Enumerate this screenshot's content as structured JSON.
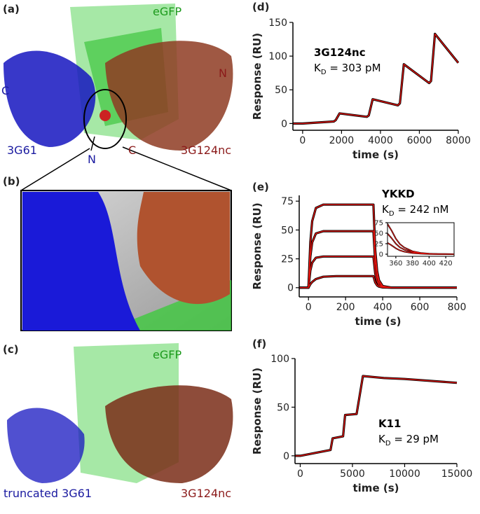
{
  "structure_panels": [
    {
      "label": "(a)",
      "texts": [
        "eGFP",
        "C",
        "N",
        "3G61",
        "N",
        "C",
        "3G124nc"
      ]
    },
    {
      "label": "(b)"
    },
    {
      "label": "(c)",
      "texts": [
        "eGFP",
        "truncated 3G61",
        "3G124nc"
      ]
    }
  ],
  "chart_data": [
    {
      "type": "line",
      "panel_label": "(d)",
      "xlabel": "time (s)",
      "ylabel": "Response (RU)",
      "annotation": "3G124nc",
      "kd": {
        "symbol": "K",
        "subscript": "D",
        "text": " = 303 pM"
      },
      "xlim": [
        -500,
        8000
      ],
      "xticks": [
        0,
        2000,
        4000,
        6000,
        8000
      ],
      "ylim": [
        -10,
        150
      ],
      "yticks": [
        0,
        50,
        100,
        150
      ],
      "x": [
        -500,
        0,
        1600,
        1700,
        1900,
        3300,
        3400,
        3600,
        4900,
        5000,
        5200,
        6500,
        6600,
        6800,
        8000
      ],
      "series": [
        {
          "color": "#000000",
          "values": [
            0,
            0,
            3,
            5,
            15,
            10,
            12,
            36,
            27,
            30,
            88,
            60,
            63,
            133,
            90
          ]
        },
        {
          "color": "#e8140f",
          "values": [
            0,
            0,
            3,
            5,
            15,
            10,
            12,
            36,
            27,
            30,
            88,
            60,
            63,
            133,
            90
          ]
        }
      ]
    },
    {
      "type": "line",
      "panel_label": "(e)",
      "xlabel": "time (s)",
      "ylabel": "Response (RU)",
      "annotation": "YKKD",
      "kd": {
        "symbol": "K",
        "subscript": "D",
        "text": " = 242 nM"
      },
      "xlim": [
        -50,
        800
      ],
      "xticks": [
        0,
        200,
        400,
        600,
        800
      ],
      "ylim": [
        -8,
        80
      ],
      "yticks": [
        0,
        25,
        50,
        75
      ],
      "x": [
        -50,
        0,
        10,
        20,
        40,
        80,
        150,
        350,
        360,
        370,
        380,
        400,
        450,
        800
      ],
      "series": [
        {
          "color": "#000000",
          "values": [
            0,
            0,
            39.6,
            57.6,
            69.1,
            72,
            72,
            72,
            32.4,
            14.4,
            6.5,
            1.4,
            0,
            0
          ]
        },
        {
          "color": "#000000",
          "values": [
            0,
            0,
            27,
            39.2,
            47,
            49,
            49,
            49,
            22,
            9.8,
            4.4,
            1,
            0,
            0
          ]
        },
        {
          "color": "#000000",
          "values": [
            0,
            0,
            14.9,
            21.6,
            25.9,
            27,
            27,
            27,
            12.2,
            5.4,
            2.4,
            0.5,
            0,
            0
          ]
        },
        {
          "color": "#000000",
          "values": [
            0,
            0,
            3,
            5,
            7.5,
            9.5,
            10,
            10,
            4.5,
            2,
            0.9,
            0.2,
            0,
            0
          ]
        },
        {
          "color": "#e8140f",
          "values": [
            0,
            0,
            39.6,
            57.6,
            69.1,
            72,
            72,
            72,
            32.4,
            14.4,
            6.5,
            1.4,
            0,
            0
          ]
        },
        {
          "color": "#e8140f",
          "values": [
            0,
            0,
            27,
            39.2,
            47,
            49,
            49,
            49,
            22,
            9.8,
            4.4,
            1,
            0,
            0
          ]
        },
        {
          "color": "#e8140f",
          "values": [
            0,
            0,
            14.9,
            21.6,
            25.9,
            27,
            27,
            27,
            12.2,
            5.4,
            2.4,
            0.5,
            0,
            0
          ]
        },
        {
          "color": "#e8140f",
          "values": [
            0,
            0,
            3,
            5,
            7.5,
            9.5,
            10,
            10,
            4.5,
            2,
            0.9,
            0.2,
            0,
            0
          ]
        }
      ],
      "inset": {
        "type": "line",
        "xlim": [
          350,
          430
        ],
        "xticks": [
          360,
          380,
          400,
          420
        ],
        "ylim": [
          -5,
          75
        ],
        "yticks": [
          0,
          25,
          50,
          75
        ],
        "x": [
          350,
          355,
          360,
          365,
          370,
          380,
          390,
          400,
          410,
          420,
          430
        ],
        "series": [
          {
            "color": "#000000",
            "values": [
              72,
              56,
              37,
              24,
              16,
              7,
              3,
              1.3,
              0.5,
              0.2,
              0
            ]
          },
          {
            "color": "#000000",
            "values": [
              49,
              38,
              25,
              16,
              11,
              4.8,
              2,
              0.9,
              0.3,
              0.1,
              0
            ]
          },
          {
            "color": "#000000",
            "values": [
              27,
              21,
              14,
              9,
              6,
              2.6,
              1.1,
              0.5,
              0.2,
              0.1,
              0
            ]
          },
          {
            "color": "#e8140f",
            "values": [
              72,
              56,
              37,
              24,
              16,
              7,
              3,
              1.3,
              0.5,
              0.2,
              0
            ]
          },
          {
            "color": "#e8140f",
            "values": [
              49,
              38,
              25,
              16,
              11,
              4.8,
              2,
              0.9,
              0.3,
              0.1,
              0
            ]
          },
          {
            "color": "#e8140f",
            "values": [
              27,
              21,
              14,
              9,
              6,
              2.6,
              1.1,
              0.5,
              0.2,
              0.1,
              0
            ]
          }
        ]
      }
    },
    {
      "type": "line",
      "panel_label": "(f)",
      "xlabel": "time (s)",
      "ylabel": "Response (RU)",
      "annotation": "K11",
      "kd": {
        "symbol": "K",
        "subscript": "D",
        "text": " = 29 pM"
      },
      "xlim": [
        -500,
        15000
      ],
      "xticks": [
        0,
        5000,
        10000,
        15000
      ],
      "ylim": [
        -8,
        100
      ],
      "yticks": [
        0,
        50,
        100
      ],
      "x": [
        -500,
        0,
        2900,
        3100,
        4100,
        4300,
        5400,
        6000,
        8000,
        10000,
        15000
      ],
      "series": [
        {
          "color": "#000000",
          "values": [
            0,
            0,
            6,
            18,
            20,
            42,
            43,
            82,
            80,
            79,
            75
          ]
        },
        {
          "color": "#e8140f",
          "values": [
            0,
            0,
            6,
            18,
            20,
            42,
            43,
            82,
            80,
            79,
            75
          ]
        }
      ]
    }
  ]
}
